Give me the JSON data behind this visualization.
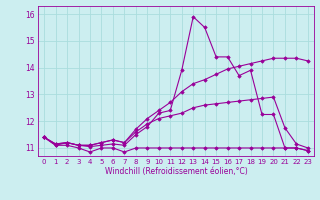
{
  "xlabel": "Windchill (Refroidissement éolien,°C)",
  "xlim": [
    -0.5,
    23.5
  ],
  "ylim": [
    10.7,
    16.3
  ],
  "yticks": [
    11,
    12,
    13,
    14,
    15,
    16
  ],
  "xticks": [
    0,
    1,
    2,
    3,
    4,
    5,
    6,
    7,
    8,
    9,
    10,
    11,
    12,
    13,
    14,
    15,
    16,
    17,
    18,
    19,
    20,
    21,
    22,
    23
  ],
  "background_color": "#cceef0",
  "line_color": "#990099",
  "grid_color": "#aadddd",
  "lines": {
    "line1": [
      11.4,
      11.1,
      11.1,
      11.0,
      10.85,
      11.0,
      11.0,
      10.85,
      11.0,
      11.0,
      11.0,
      11.0,
      11.0,
      11.0,
      11.0,
      11.0,
      11.0,
      11.0,
      11.0,
      11.0,
      11.0,
      11.0,
      11.0,
      10.9
    ],
    "line2": [
      11.4,
      11.1,
      11.2,
      11.1,
      11.05,
      11.1,
      11.15,
      11.1,
      11.5,
      11.8,
      12.3,
      12.4,
      13.9,
      15.9,
      15.5,
      14.4,
      14.4,
      13.7,
      13.9,
      12.25,
      12.25,
      11.0,
      11.0,
      10.9
    ],
    "line3": [
      11.4,
      11.15,
      11.2,
      11.1,
      11.1,
      11.2,
      11.3,
      11.2,
      11.6,
      11.9,
      12.1,
      12.2,
      12.3,
      12.5,
      12.6,
      12.65,
      12.7,
      12.75,
      12.8,
      12.85,
      12.9,
      11.75,
      11.15,
      11.0
    ],
    "line4": [
      11.4,
      11.15,
      11.2,
      11.1,
      11.1,
      11.2,
      11.3,
      11.2,
      11.7,
      12.1,
      12.4,
      12.7,
      13.1,
      13.4,
      13.55,
      13.75,
      13.95,
      14.05,
      14.15,
      14.25,
      14.35,
      14.35,
      14.35,
      14.25
    ]
  }
}
